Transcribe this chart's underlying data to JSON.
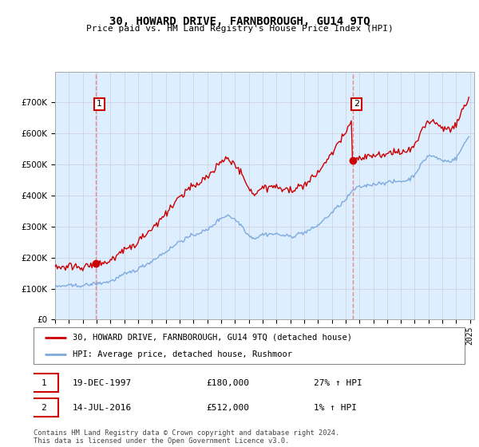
{
  "title": "30, HOWARD DRIVE, FARNBOROUGH, GU14 9TQ",
  "subtitle": "Price paid vs. HM Land Registry's House Price Index (HPI)",
  "sale1": {
    "price": 180000,
    "label": "1",
    "hpi_pct": "27% ↑ HPI",
    "display_date": "19-DEC-1997"
  },
  "sale2": {
    "price": 512000,
    "label": "2",
    "hpi_pct": "1% ↑ HPI",
    "display_date": "14-JUL-2016"
  },
  "legend_line1": "30, HOWARD DRIVE, FARNBOROUGH, GU14 9TQ (detached house)",
  "legend_line2": "HPI: Average price, detached house, Rushmoor",
  "footer": "Contains HM Land Registry data © Crown copyright and database right 2024.\nThis data is licensed under the Open Government Licence v3.0.",
  "ylim": [
    0,
    800000
  ],
  "yticks": [
    0,
    100000,
    200000,
    300000,
    400000,
    500000,
    600000,
    700000
  ],
  "price_line_color": "#cc0000",
  "hpi_line_color": "#7faadd",
  "dashed_line_color": "#ee8888",
  "sale_dot_color": "#cc0000",
  "box_color": "#cc0000",
  "chart_bg_color": "#ddeeff",
  "background_color": "#ffffff",
  "grid_color": "#ccccdd"
}
